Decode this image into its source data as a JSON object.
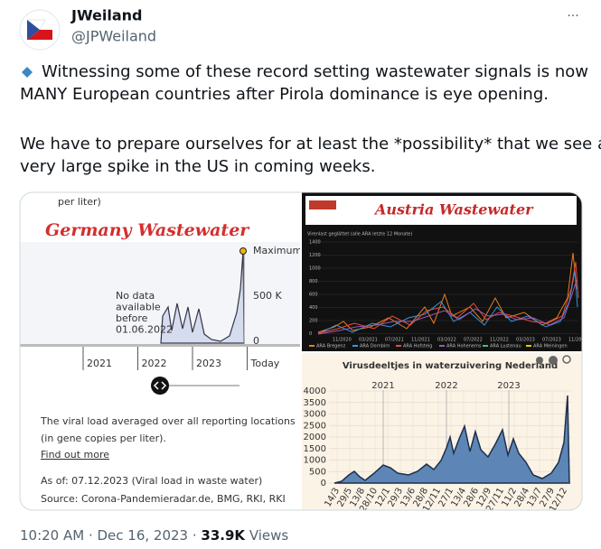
{
  "header": {
    "name": "JWeiland",
    "handle": "@JPWeiland",
    "more": "···"
  },
  "tweet": {
    "lines": [
      "Witnessing some of these record setting wastewater signals is now",
      "MANY European countries after Pirola dominance is eye opening.",
      "We have to prepare ourselves for at least the *possibility* that we see a",
      "very large spike in the US in coming weeks."
    ]
  },
  "germany": {
    "unit_fragment": "per liter)",
    "title": "Germany Wastewater",
    "max_label": "Maximum",
    "y_labels": [
      "500 K",
      "0"
    ],
    "no_data": [
      "No data",
      "available",
      "before",
      "01.06.2022"
    ],
    "years": [
      "2021",
      "2022",
      "2023",
      "Today"
    ],
    "description": [
      "The viral load averaged over all reporting locations",
      "(in gene copies per liter)."
    ],
    "link": "Find out more",
    "as_of": "As of: 07.12.2023 (Viral load in waste water)",
    "source": "Source: Corona-Pandemieradar.de, BMG, RKI, RKI"
  },
  "austria": {
    "title": "Austria Wastewater",
    "subtitle": "Virenlast geglättet (alle ARA letzte 12 Monate)",
    "yticks": [
      "1400",
      "1200",
      "1000",
      "800",
      "600",
      "400",
      "200",
      "0"
    ],
    "xlabels": [
      "11/2020",
      "03/2021",
      "07/2021",
      "11/2021",
      "03/2022",
      "07/2022",
      "11/2022",
      "03/2023",
      "07/2023",
      "11/2023"
    ],
    "legend": [
      "ARA Bregenz",
      "ARA Dornbirn",
      "ARA Hofsteig",
      "ARA Hohenems",
      "ARA Lustenau",
      "ARA Meiningen"
    ]
  },
  "netherlands": {
    "title": "Virusdeeltjes in waterzuivering Nederland",
    "yticks": [
      "4000",
      "3500",
      "3000",
      "2500",
      "2000",
      "1500",
      "1000",
      "500",
      "0"
    ],
    "years": [
      "2021",
      "2022",
      "2023"
    ],
    "xlabels": [
      "14/3",
      "29/5",
      "13/8",
      "28/10",
      "12/1",
      "29/3",
      "13/6",
      "28/8",
      "12/11",
      "27/1",
      "13/4",
      "28/6",
      "12/9",
      "27/11",
      "11/2",
      "28/4",
      "13/7",
      "27/9",
      "12/12"
    ]
  },
  "footer": {
    "time": "10:20 AM · Dec 16, 2023 · ",
    "views_count": "33.9K",
    "views_label": " Views"
  }
}
